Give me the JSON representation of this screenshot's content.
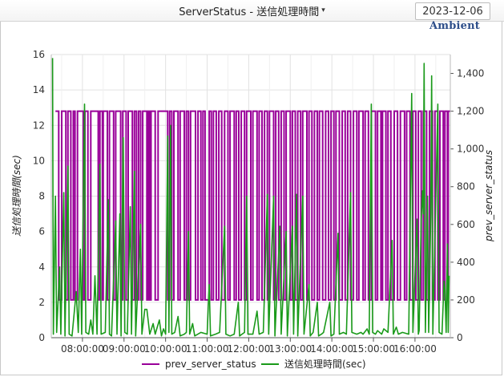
{
  "header": {
    "title": "ServerStatus - 送信処理時間",
    "date": "2023-12-06",
    "brand": "Ambient"
  },
  "colors": {
    "status_line": "#990099",
    "time_line": "#1a9a1a",
    "grid": "#e2e2e2",
    "axis": "#555555"
  },
  "chart_data": {
    "type": "line",
    "ylabel_left": "送信処理時間(sec)",
    "ylabel_right": "prev_server_status",
    "x_ticks": [
      "08:00:00",
      "09:00:00",
      "10:00:00",
      "11:00:00",
      "12:00:00",
      "13:00:00",
      "14:00:00",
      "15:00:00",
      "16:00:00"
    ],
    "x_range_hours": [
      7.25,
      16.85
    ],
    "y_left_ticks": [
      "0",
      "2",
      "4",
      "6",
      "8",
      "10",
      "12",
      "14",
      "16"
    ],
    "y_left_range": [
      0,
      16
    ],
    "y_right_ticks": [
      "0",
      "200",
      "400",
      "600",
      "800",
      "1,000",
      "1,200",
      "1,400"
    ],
    "y_right_range": [
      0,
      1500
    ],
    "legend": {
      "position": "bottom",
      "items": [
        "prev_server_status",
        "送信処理時間(sec)"
      ]
    },
    "series": [
      {
        "name": "prev_server_status",
        "axis": "right",
        "low": 200,
        "high": 1200,
        "points": [
          [
            7.35,
            1200
          ],
          [
            7.43,
            200
          ],
          [
            7.5,
            1200
          ],
          [
            7.6,
            200
          ],
          [
            7.65,
            1200
          ],
          [
            7.72,
            200
          ],
          [
            7.78,
            1200
          ],
          [
            7.82,
            200
          ],
          [
            7.88,
            1200
          ],
          [
            8.02,
            200
          ],
          [
            8.06,
            1200
          ],
          [
            8.13,
            200
          ],
          [
            8.2,
            1200
          ],
          [
            8.38,
            200
          ],
          [
            8.42,
            1200
          ],
          [
            8.48,
            200
          ],
          [
            8.5,
            1200
          ],
          [
            8.6,
            200
          ],
          [
            8.65,
            1200
          ],
          [
            8.75,
            200
          ],
          [
            8.8,
            1200
          ],
          [
            8.92,
            200
          ],
          [
            8.97,
            1200
          ],
          [
            9.05,
            200
          ],
          [
            9.1,
            1200
          ],
          [
            9.2,
            200
          ],
          [
            9.25,
            1200
          ],
          [
            9.3,
            200
          ],
          [
            9.35,
            1200
          ],
          [
            9.4,
            200
          ],
          [
            9.45,
            1200
          ],
          [
            9.55,
            200
          ],
          [
            9.58,
            1200
          ],
          [
            9.62,
            200
          ],
          [
            9.65,
            1200
          ],
          [
            9.75,
            200
          ],
          [
            9.82,
            1200
          ],
          [
            10.05,
            200
          ],
          [
            10.1,
            1200
          ],
          [
            10.15,
            200
          ],
          [
            10.2,
            1200
          ],
          [
            10.3,
            200
          ],
          [
            10.35,
            1200
          ],
          [
            10.45,
            200
          ],
          [
            10.5,
            1200
          ],
          [
            10.55,
            200
          ],
          [
            10.6,
            1200
          ],
          [
            10.72,
            200
          ],
          [
            10.78,
            1200
          ],
          [
            10.85,
            200
          ],
          [
            10.9,
            1200
          ],
          [
            10.95,
            200
          ],
          [
            11.05,
            1200
          ],
          [
            11.1,
            200
          ],
          [
            11.15,
            1200
          ],
          [
            11.22,
            200
          ],
          [
            11.28,
            1200
          ],
          [
            11.35,
            200
          ],
          [
            11.42,
            1200
          ],
          [
            11.5,
            200
          ],
          [
            11.55,
            1200
          ],
          [
            11.65,
            200
          ],
          [
            11.7,
            1200
          ],
          [
            11.76,
            200
          ],
          [
            11.82,
            1200
          ],
          [
            11.9,
            200
          ],
          [
            11.95,
            1200
          ],
          [
            12.05,
            200
          ],
          [
            12.1,
            1200
          ],
          [
            12.2,
            200
          ],
          [
            12.25,
            1200
          ],
          [
            12.32,
            200
          ],
          [
            12.38,
            1200
          ],
          [
            12.45,
            200
          ],
          [
            12.5,
            1200
          ],
          [
            12.6,
            200
          ],
          [
            12.65,
            1200
          ],
          [
            12.72,
            200
          ],
          [
            12.78,
            1200
          ],
          [
            12.85,
            200
          ],
          [
            12.9,
            1200
          ],
          [
            13.0,
            200
          ],
          [
            13.05,
            1200
          ],
          [
            13.12,
            200
          ],
          [
            13.18,
            1200
          ],
          [
            13.25,
            200
          ],
          [
            13.3,
            1200
          ],
          [
            13.4,
            200
          ],
          [
            13.45,
            1200
          ],
          [
            13.52,
            200
          ],
          [
            13.58,
            1200
          ],
          [
            13.65,
            200
          ],
          [
            13.7,
            1200
          ],
          [
            13.78,
            200
          ],
          [
            13.85,
            1200
          ],
          [
            13.92,
            200
          ],
          [
            13.98,
            1200
          ],
          [
            14.05,
            200
          ],
          [
            14.1,
            1200
          ],
          [
            14.18,
            200
          ],
          [
            14.25,
            1200
          ],
          [
            14.32,
            200
          ],
          [
            14.38,
            1200
          ],
          [
            14.45,
            200
          ],
          [
            14.52,
            1200
          ],
          [
            14.6,
            200
          ],
          [
            14.65,
            1200
          ],
          [
            14.75,
            200
          ],
          [
            14.8,
            1200
          ],
          [
            14.88,
            200
          ],
          [
            14.95,
            1200
          ],
          [
            15.05,
            200
          ],
          [
            15.1,
            1200
          ],
          [
            15.18,
            200
          ],
          [
            15.22,
            1200
          ],
          [
            15.3,
            200
          ],
          [
            15.35,
            1200
          ],
          [
            15.42,
            200
          ],
          [
            15.5,
            1200
          ],
          [
            15.58,
            200
          ],
          [
            15.65,
            1200
          ],
          [
            15.75,
            200
          ],
          [
            15.8,
            1200
          ],
          [
            15.88,
            200
          ],
          [
            15.95,
            1200
          ],
          [
            16.02,
            200
          ],
          [
            16.08,
            1200
          ],
          [
            16.15,
            200
          ],
          [
            16.2,
            1200
          ],
          [
            16.28,
            200
          ],
          [
            16.35,
            1200
          ],
          [
            16.42,
            200
          ],
          [
            16.48,
            1200
          ],
          [
            16.55,
            200
          ],
          [
            16.6,
            1200
          ],
          [
            16.68,
            200
          ],
          [
            16.72,
            1200
          ],
          [
            16.78,
            200
          ],
          [
            16.8,
            1200
          ]
        ]
      },
      {
        "name": "送信処理時間(sec)",
        "axis": "left",
        "points": [
          [
            7.28,
            15.8
          ],
          [
            7.3,
            0.2
          ],
          [
            7.35,
            8.0
          ],
          [
            7.38,
            0.3
          ],
          [
            7.45,
            4.0
          ],
          [
            7.48,
            0.2
          ],
          [
            7.55,
            8.2
          ],
          [
            7.58,
            0.1
          ],
          [
            7.65,
            9.7
          ],
          [
            7.68,
            0.2
          ],
          [
            7.75,
            0.1
          ],
          [
            7.85,
            2.6
          ],
          [
            7.9,
            0.3
          ],
          [
            7.95,
            5.0
          ],
          [
            7.98,
            0.2
          ],
          [
            8.05,
            13.2
          ],
          [
            8.08,
            0.3
          ],
          [
            8.15,
            0.2
          ],
          [
            8.2,
            1.0
          ],
          [
            8.25,
            0.2
          ],
          [
            8.3,
            3.5
          ],
          [
            8.35,
            0.2
          ],
          [
            8.42,
            9.8
          ],
          [
            8.45,
            0.2
          ],
          [
            8.55,
            0.3
          ],
          [
            8.62,
            7.8
          ],
          [
            8.65,
            0.2
          ],
          [
            8.7,
            0.1
          ],
          [
            8.8,
            6.6
          ],
          [
            8.83,
            0.2
          ],
          [
            8.9,
            7.0
          ],
          [
            8.93,
            0.1
          ],
          [
            8.98,
            11.3
          ],
          [
            9.02,
            0.3
          ],
          [
            9.08,
            0.2
          ],
          [
            9.15,
            7.4
          ],
          [
            9.18,
            0.2
          ],
          [
            9.25,
            9.4
          ],
          [
            9.28,
            0.1
          ],
          [
            9.4,
            6.4
          ],
          [
            9.43,
            0.2
          ],
          [
            9.5,
            1.6
          ],
          [
            9.55,
            1.6
          ],
          [
            9.62,
            0.2
          ],
          [
            9.7,
            0.8
          ],
          [
            9.75,
            0.2
          ],
          [
            9.85,
            1.0
          ],
          [
            9.9,
            0.1
          ],
          [
            9.95,
            0.5
          ],
          [
            10.0,
            0.2
          ],
          [
            10.05,
            11.4
          ],
          [
            10.08,
            0.3
          ],
          [
            10.12,
            12.0
          ],
          [
            10.15,
            0.2
          ],
          [
            10.22,
            0.3
          ],
          [
            10.3,
            1.2
          ],
          [
            10.35,
            0.1
          ],
          [
            10.45,
            0.2
          ],
          [
            10.5,
            0.3
          ],
          [
            10.55,
            6.0
          ],
          [
            10.58,
            0.2
          ],
          [
            10.65,
            0.8
          ],
          [
            10.7,
            0.1
          ],
          [
            10.85,
            0.3
          ],
          [
            11.0,
            0.2
          ],
          [
            11.05,
            3.0
          ],
          [
            11.08,
            0.1
          ],
          [
            11.2,
            0.2
          ],
          [
            11.3,
            0.3
          ],
          [
            11.42,
            6.3
          ],
          [
            11.45,
            0.2
          ],
          [
            11.55,
            0.1
          ],
          [
            11.65,
            0.2
          ],
          [
            11.75,
            2.0
          ],
          [
            11.78,
            0.1
          ],
          [
            11.9,
            0.3
          ],
          [
            11.95,
            8.0
          ],
          [
            11.98,
            0.2
          ],
          [
            12.1,
            0.2
          ],
          [
            12.2,
            1.5
          ],
          [
            12.25,
            0.2
          ],
          [
            12.35,
            0.3
          ],
          [
            12.45,
            8.1
          ],
          [
            12.48,
            0.2
          ],
          [
            12.6,
            8.0
          ],
          [
            12.63,
            0.1
          ],
          [
            12.75,
            6.3
          ],
          [
            12.78,
            0.2
          ],
          [
            12.9,
            6.0
          ],
          [
            12.93,
            0.1
          ],
          [
            13.05,
            6.3
          ],
          [
            13.08,
            0.2
          ],
          [
            13.15,
            8.1
          ],
          [
            13.18,
            0.1
          ],
          [
            13.3,
            8.0
          ],
          [
            13.33,
            0.2
          ],
          [
            13.45,
            3.0
          ],
          [
            13.48,
            0.1
          ],
          [
            13.55,
            0.3
          ],
          [
            13.65,
            2.0
          ],
          [
            13.68,
            0.1
          ],
          [
            13.75,
            0.2
          ],
          [
            13.8,
            0.3
          ],
          [
            13.95,
            2.0
          ],
          [
            13.98,
            0.1
          ],
          [
            14.05,
            0.2
          ],
          [
            14.15,
            5.9
          ],
          [
            14.18,
            0.2
          ],
          [
            14.28,
            0.3
          ],
          [
            14.35,
            0.2
          ],
          [
            14.45,
            8.2
          ],
          [
            14.48,
            0.3
          ],
          [
            14.6,
            0.2
          ],
          [
            14.7,
            0.3
          ],
          [
            14.75,
            0.2
          ],
          [
            14.85,
            0.5
          ],
          [
            14.9,
            0.2
          ],
          [
            14.95,
            13.2
          ],
          [
            14.98,
            0.3
          ],
          [
            15.05,
            0.2
          ],
          [
            15.1,
            0.4
          ],
          [
            15.2,
            0.2
          ],
          [
            15.25,
            0.5
          ],
          [
            15.35,
            0.3
          ],
          [
            15.45,
            5.5
          ],
          [
            15.48,
            0.2
          ],
          [
            15.55,
            0.6
          ],
          [
            15.6,
            0.2
          ],
          [
            15.7,
            0.3
          ],
          [
            15.85,
            0.2
          ],
          [
            15.92,
            13.8
          ],
          [
            15.95,
            0.3
          ],
          [
            16.05,
            6.7
          ],
          [
            16.08,
            0.2
          ],
          [
            16.1,
            0.4
          ],
          [
            16.15,
            6.7
          ],
          [
            16.18,
            8.3
          ],
          [
            16.2,
            7.0
          ],
          [
            16.22,
            15.5
          ],
          [
            16.25,
            0.3
          ],
          [
            16.3,
            8.0
          ],
          [
            16.33,
            0.3
          ],
          [
            16.38,
            7.0
          ],
          [
            16.4,
            14.8
          ],
          [
            16.43,
            0.2
          ],
          [
            16.55,
            13.2
          ],
          [
            16.58,
            0.3
          ],
          [
            16.65,
            0.2
          ],
          [
            16.7,
            3.2
          ],
          [
            16.72,
            2.7
          ],
          [
            16.75,
            0.3
          ],
          [
            16.78,
            5.3
          ],
          [
            16.8,
            0.3
          ],
          [
            16.82,
            3.5
          ]
        ]
      }
    ]
  }
}
